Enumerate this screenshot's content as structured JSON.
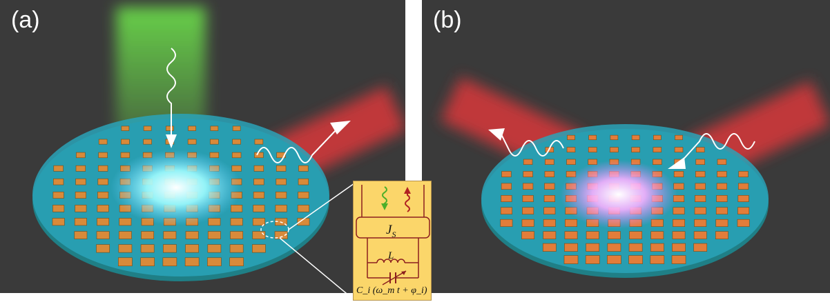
{
  "panels": [
    {
      "label": "(a)"
    },
    {
      "label": "(b)"
    }
  ],
  "inset": {
    "junction_label": "J",
    "junction_subscript": "S",
    "inductor_label": "L",
    "capacitor_label": "C_i (ω_m t + φ_i)"
  },
  "colors": {
    "background": "#3a3a3a",
    "substrate": "#2aa3b8",
    "pump_beam": "#5fcf3a",
    "signal_beam": "#d8393a",
    "pad_orange": "#d88a3a",
    "inset_bg": "#fbd66a",
    "circuit": "#8b1e1e"
  },
  "icons": [
    "wavy-arrow-down-icon",
    "wavy-arrow-up-icon",
    "inductor-icon",
    "variable-capacitor-icon"
  ]
}
